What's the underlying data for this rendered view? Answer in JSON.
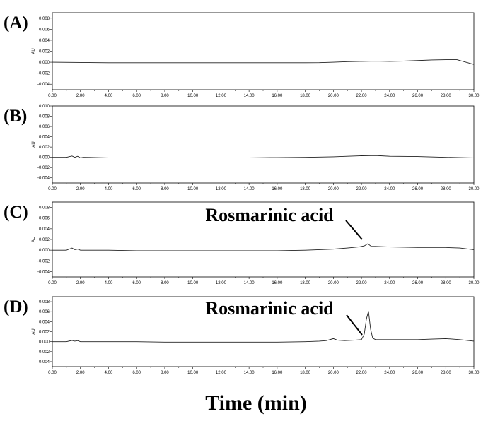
{
  "chart_data": [
    {
      "type": "line",
      "panel_label": "(A)",
      "ylabel": "AU",
      "annotation": "",
      "xlim": [
        0,
        30
      ],
      "ylim": [
        -0.005,
        0.009
      ],
      "xticks": [
        "0.00",
        "2.00",
        "4.00",
        "6.00",
        "8.00",
        "10.00",
        "12.00",
        "14.00",
        "16.00",
        "18.00",
        "20.00",
        "22.00",
        "24.00",
        "26.00",
        "28.00",
        "30.00"
      ],
      "yticks": [
        "0.008",
        "0.006",
        "0.004",
        "0.002",
        "0.000",
        "-0.002",
        "-0.004"
      ],
      "ytick_values": [
        0.008,
        0.006,
        0.004,
        0.002,
        0.0,
        -0.002,
        -0.004
      ],
      "series": [
        {
          "x": [
            0,
            2,
            4,
            6,
            8,
            10,
            12,
            14,
            16,
            18,
            19,
            20,
            21,
            22,
            23,
            24,
            25,
            26,
            27,
            28,
            28.8,
            29.3,
            30
          ],
          "y": [
            0.0,
            -5e-05,
            -0.0001,
            -0.0001,
            -0.0001,
            -0.0001,
            -0.0001,
            -0.0001,
            -0.0001,
            -0.0001,
            -8e-05,
            0.0,
            0.0001,
            0.00015,
            0.0002,
            0.00015,
            0.0002,
            0.0003,
            0.0004,
            0.00045,
            0.00045,
            0.0001,
            -0.0004
          ]
        }
      ]
    },
    {
      "type": "line",
      "panel_label": "(B)",
      "ylabel": "AU",
      "annotation": "",
      "xlim": [
        0,
        30
      ],
      "ylim": [
        -0.005,
        0.01
      ],
      "xticks": [
        "0.00",
        "2.00",
        "4.00",
        "6.00",
        "8.00",
        "10.00",
        "12.00",
        "14.00",
        "16.00",
        "18.00",
        "20.00",
        "22.00",
        "24.00",
        "26.00",
        "28.00",
        "30.00"
      ],
      "yticks": [
        "0.010",
        "0.008",
        "0.006",
        "0.004",
        "0.002",
        "0.000",
        "-0.002",
        "-0.004"
      ],
      "ytick_values": [
        0.01,
        0.008,
        0.006,
        0.004,
        0.002,
        0.0,
        -0.002,
        -0.004
      ],
      "series": [
        {
          "x": [
            0,
            1,
            1.4,
            1.6,
            1.8,
            2,
            2.2,
            4,
            6,
            8,
            10,
            12,
            14,
            16,
            18,
            20,
            21,
            22,
            23,
            24,
            26,
            28,
            30
          ],
          "y": [
            0.0,
            0.0,
            0.00025,
            0.0,
            0.0002,
            -0.0001,
            0.0,
            -0.0001,
            -0.0001,
            -0.0001,
            -0.0001,
            -0.0001,
            -0.0001,
            -5e-05,
            0.0,
            0.0001,
            0.0002,
            0.0003,
            0.00035,
            0.0002,
            0.00015,
            0.0,
            -0.0001
          ]
        }
      ]
    },
    {
      "type": "line",
      "panel_label": "(C)",
      "ylabel": "AU",
      "annotation": "Rosmarinic acid",
      "xlim": [
        0,
        30
      ],
      "ylim": [
        -0.005,
        0.009
      ],
      "xticks": [
        "0.00",
        "2.00",
        "4.00",
        "6.00",
        "8.00",
        "10.00",
        "12.00",
        "14.00",
        "16.00",
        "18.00",
        "20.00",
        "22.00",
        "24.00",
        "26.00",
        "28.00",
        "30.00"
      ],
      "yticks": [
        "0.008",
        "0.006",
        "0.004",
        "0.002",
        "0.000",
        "-0.002",
        "-0.004"
      ],
      "ytick_values": [
        0.008,
        0.006,
        0.004,
        0.002,
        0.0,
        -0.002,
        -0.004
      ],
      "series": [
        {
          "x": [
            0,
            1,
            1.4,
            1.6,
            1.8,
            2,
            4,
            6,
            8,
            10,
            12,
            14,
            16,
            18,
            19,
            20,
            21,
            21.8,
            22.2,
            22.45,
            22.7,
            23,
            24,
            26,
            28,
            29,
            30
          ],
          "y": [
            0.0,
            0.0,
            0.0004,
            0.0001,
            0.0002,
            0.0,
            0.0,
            -0.0001,
            -0.0001,
            -0.0001,
            -0.0001,
            -0.0001,
            -0.0001,
            0.0,
            0.0001,
            0.0002,
            0.0004,
            0.0006,
            0.0008,
            0.0012,
            0.0007,
            0.0007,
            0.0006,
            0.0005,
            0.0005,
            0.0004,
            0.0001
          ]
        }
      ]
    },
    {
      "type": "line",
      "panel_label": "(D)",
      "ylabel": "AU",
      "annotation": "Rosmarinic acid",
      "xlim": [
        0,
        30
      ],
      "ylim": [
        -0.005,
        0.009
      ],
      "xticks": [
        "0.00",
        "2.00",
        "4.00",
        "6.00",
        "8.00",
        "10.00",
        "12.00",
        "14.00",
        "16.00",
        "18.00",
        "20.00",
        "22.00",
        "24.00",
        "26.00",
        "28.00",
        "30.00"
      ],
      "yticks": [
        "0.008",
        "0.006",
        "0.004",
        "0.002",
        "0.000",
        "-0.002",
        "-0.004"
      ],
      "ytick_values": [
        0.008,
        0.006,
        0.004,
        0.002,
        0.0,
        -0.002,
        -0.004
      ],
      "series": [
        {
          "x": [
            0,
            1,
            1.4,
            1.6,
            1.8,
            2,
            4,
            6,
            8,
            10,
            12,
            14,
            16,
            18,
            19,
            19.5,
            20,
            20.3,
            20.8,
            21.5,
            22,
            22.2,
            22.35,
            22.5,
            22.65,
            22.8,
            23,
            24,
            26,
            27,
            28,
            29,
            30
          ],
          "y": [
            0.0,
            0.0,
            0.00025,
            0.0001,
            0.0002,
            0.0,
            0.0,
            0.0,
            -0.0001,
            -0.0001,
            -0.0001,
            -0.0001,
            -0.0001,
            0.0,
            0.0001,
            0.0002,
            0.0006,
            0.0003,
            0.0002,
            0.0003,
            0.0004,
            0.0015,
            0.0045,
            0.0061,
            0.0025,
            0.0007,
            0.0004,
            0.0004,
            0.0004,
            0.0005,
            0.0006,
            0.0004,
            0.0001
          ]
        }
      ]
    }
  ],
  "xlabel": "Time (min)"
}
